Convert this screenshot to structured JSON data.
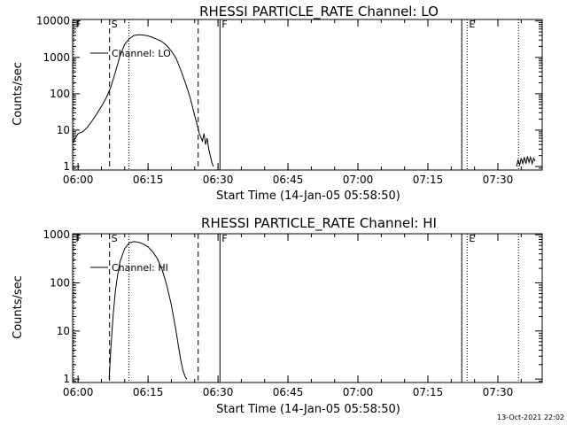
{
  "footer_timestamp": "13-Oct-2021 22:02",
  "chart_data": [
    {
      "type": "line",
      "title": "RHESSI PARTICLE_RATE Channel: LO",
      "xlabel": "Start Time (14-Jan-05 05:58:50)",
      "ylabel": "Counts/sec",
      "yscale": "log",
      "xlim": [
        "05:58:50",
        "07:39:30"
      ],
      "ylim": [
        0.8,
        11000
      ],
      "x_ticks": [
        "06:00",
        "06:15",
        "06:30",
        "06:45",
        "07:00",
        "07:15",
        "07:30"
      ],
      "y_ticks": [
        {
          "value": 1,
          "label": "1"
        },
        {
          "value": 10,
          "label": "10"
        },
        {
          "value": 100,
          "label": "100"
        },
        {
          "value": 1000,
          "label": "1000"
        },
        {
          "value": 10000,
          "label": "10000"
        }
      ],
      "legend": {
        "label": "Channel: LO",
        "position": "top-left"
      },
      "markers": [
        {
          "label": "F",
          "time": "05:59:05",
          "style": "dotted"
        },
        {
          "label": "S",
          "time": "06:06:45",
          "style": "dashed"
        },
        {
          "label": "",
          "time": "06:10:55",
          "style": "dotted"
        },
        {
          "label": "",
          "time": "06:25:45",
          "style": "dashed"
        },
        {
          "label": "F",
          "time": "06:30:25",
          "style": "solid"
        },
        {
          "label": "",
          "time": "07:22:15",
          "style": "solid"
        },
        {
          "label": "E",
          "time": "07:23:25",
          "style": "dotted"
        },
        {
          "label": "",
          "time": "07:34:25",
          "style": "dotted"
        }
      ],
      "series": [
        {
          "name": "Channel: LO",
          "segments": [
            {
              "x": [
                "05:58:50",
                "06:00:00",
                "06:01:00",
                "06:02:00",
                "06:03:00",
                "06:04:00",
                "06:05:00",
                "06:06:00",
                "06:07:00",
                "06:08:00",
                "06:09:00",
                "06:10:00",
                "06:11:00",
                "06:12:00",
                "06:13:00",
                "06:14:00",
                "06:15:00",
                "06:16:00",
                "06:17:00",
                "06:18:00",
                "06:19:00",
                "06:20:00",
                "06:21:00",
                "06:22:00",
                "06:23:00",
                "06:24:00",
                "06:25:00",
                "06:25:40",
                "06:26:00",
                "06:26:40",
                "06:27:00",
                "06:27:20",
                "06:27:40",
                "06:28:00",
                "06:28:20",
                "06:28:40",
                "06:29:00"
              ],
              "y": [
                4.5,
                8,
                9,
                12,
                18,
                28,
                45,
                75,
                150,
                400,
                1100,
                2300,
                3300,
                4000,
                4200,
                4100,
                3900,
                3500,
                3100,
                2700,
                2100,
                1500,
                950,
                450,
                200,
                80,
                25,
                12,
                8,
                5,
                8,
                4,
                6,
                3,
                2,
                1.3,
                1
              ]
            },
            {
              "x": [
                "07:34:00",
                "07:34:20",
                "07:34:40",
                "07:35:00",
                "07:35:20",
                "07:35:40",
                "07:36:00",
                "07:36:20",
                "07:36:40",
                "07:37:00",
                "07:37:20",
                "07:37:40",
                "07:38:00"
              ],
              "y": [
                1,
                1.5,
                1.1,
                1.7,
                1.2,
                1.8,
                1.2,
                1.9,
                1.3,
                1.8,
                1.2,
                1.7,
                1.4
              ]
            }
          ]
        }
      ]
    },
    {
      "type": "line",
      "title": "RHESSI PARTICLE_RATE Channel: HI",
      "xlabel": "Start Time (14-Jan-05 05:58:50)",
      "ylabel": "Counts/sec",
      "yscale": "log",
      "xlim": [
        "05:58:50",
        "07:39:30"
      ],
      "ylim": [
        0.85,
        1050
      ],
      "x_ticks": [
        "06:00",
        "06:15",
        "06:30",
        "06:45",
        "07:00",
        "07:15",
        "07:30"
      ],
      "y_ticks": [
        {
          "value": 1,
          "label": "1"
        },
        {
          "value": 10,
          "label": "10"
        },
        {
          "value": 100,
          "label": "100"
        },
        {
          "value": 1000,
          "label": "1000"
        }
      ],
      "legend": {
        "label": "Channel: HI",
        "position": "top-left"
      },
      "markers": [
        {
          "label": "F",
          "time": "05:59:05",
          "style": "dotted"
        },
        {
          "label": "S",
          "time": "06:06:45",
          "style": "dashed"
        },
        {
          "label": "",
          "time": "06:10:55",
          "style": "dotted"
        },
        {
          "label": "",
          "time": "06:25:45",
          "style": "dashed"
        },
        {
          "label": "F",
          "time": "06:30:25",
          "style": "solid"
        },
        {
          "label": "",
          "time": "07:22:15",
          "style": "solid"
        },
        {
          "label": "E",
          "time": "07:23:25",
          "style": "dotted"
        },
        {
          "label": "",
          "time": "07:34:25",
          "style": "dotted"
        }
      ],
      "series": [
        {
          "name": "Channel: HI",
          "segments": [
            {
              "x": [
                "06:06:40",
                "06:07:00",
                "06:07:30",
                "06:08:00",
                "06:08:30",
                "06:09:00",
                "06:10:00",
                "06:11:00",
                "06:12:00",
                "06:13:00",
                "06:14:00",
                "06:15:00",
                "06:16:00",
                "06:17:00",
                "06:18:00",
                "06:19:00",
                "06:20:00",
                "06:21:00",
                "06:21:30",
                "06:22:00",
                "06:22:30",
                "06:23:00",
                "06:23:20"
              ],
              "y": [
                1,
                4,
                20,
                70,
                150,
                280,
                520,
                680,
                720,
                700,
                640,
                560,
                440,
                320,
                190,
                90,
                35,
                10,
                5,
                2.5,
                1.5,
                1.1,
                1
              ]
            }
          ]
        }
      ]
    }
  ]
}
